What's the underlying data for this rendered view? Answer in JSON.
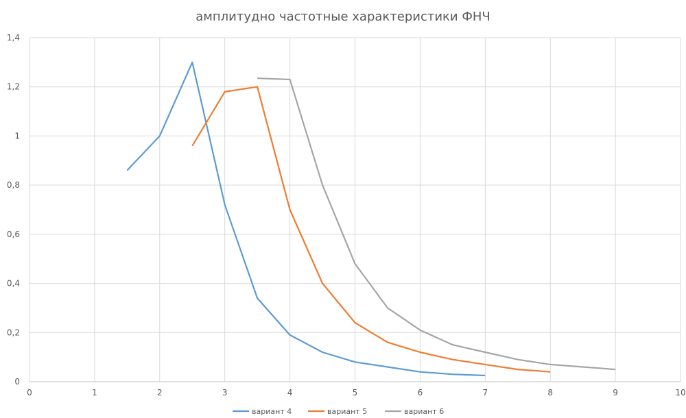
{
  "chart_data": {
    "type": "line",
    "title": "амплитудно частотные характеристики ФНЧ",
    "xlabel": "",
    "ylabel": "",
    "xlim": [
      0,
      10
    ],
    "ylim": [
      0,
      1.4
    ],
    "x_ticks": [
      "0",
      "1",
      "2",
      "3",
      "4",
      "5",
      "6",
      "7",
      "8",
      "9",
      "10"
    ],
    "y_ticks": [
      "0",
      "0,2",
      "0,4",
      "0,6",
      "0,8",
      "1",
      "1,2",
      "1,4"
    ],
    "grid": true,
    "legend_position": "bottom",
    "series": [
      {
        "name": "вариант 4",
        "color": "#5B9BD5",
        "x": [
          1.5,
          2,
          2.5,
          3,
          3.5,
          4,
          4.5,
          5,
          5.5,
          6,
          6.5,
          7
        ],
        "y": [
          0.86,
          1.0,
          1.3,
          0.72,
          0.34,
          0.19,
          0.12,
          0.08,
          0.06,
          0.04,
          0.03,
          0.025
        ]
      },
      {
        "name": "вариант 5",
        "color": "#ED7D31",
        "x": [
          2.5,
          3,
          3.5,
          4,
          4.5,
          5,
          5.5,
          6,
          6.5,
          7,
          7.5,
          8
        ],
        "y": [
          0.96,
          1.18,
          1.2,
          0.7,
          0.4,
          0.24,
          0.16,
          0.12,
          0.09,
          0.07,
          0.05,
          0.04
        ]
      },
      {
        "name": "вариант 6",
        "color": "#A5A5A5",
        "x": [
          3.5,
          4,
          4.5,
          5,
          5.5,
          6,
          6.5,
          7,
          7.5,
          8,
          8.5,
          9
        ],
        "y": [
          1.235,
          1.23,
          0.8,
          0.48,
          0.3,
          0.21,
          0.15,
          0.12,
          0.09,
          0.07,
          0.06,
          0.05
        ]
      }
    ]
  }
}
